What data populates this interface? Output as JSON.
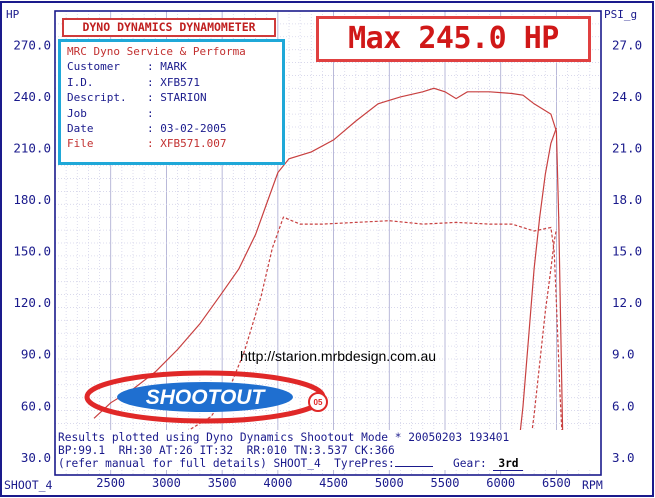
{
  "header": {
    "brand": "DYNO DYNAMICS DYNAMOMETER",
    "max_text": "Max 245.0 HP"
  },
  "info": {
    "shop": "MRC Dyno Service & Performa",
    "rows": [
      {
        "label": "Customer",
        "value": ": MARK"
      },
      {
        "label": "I.D.",
        "value": ": XFB571"
      },
      {
        "label": "Descript.",
        "value": ": STARION"
      },
      {
        "label": "Job",
        "value": ":"
      },
      {
        "label": "Date",
        "value": ": 03-02-2005"
      }
    ],
    "file_label": "File",
    "file_value": ": XFB571.007"
  },
  "url": "http://starion.mrbdesign.com.au",
  "logo": {
    "text": "SHOOTOUT",
    "sub": "05"
  },
  "bottom": {
    "line1": "Results plotted using Dyno Dynamics Shootout Mode * 20050203 193401",
    "line2": "BP:99.1  RH:30 AT:26 IT:32  RR:010 TN:3.537 CK:366",
    "line3_a": "(refer manual for full details) SHOOT_4  TyrePres:",
    "line3_b": "Gear:",
    "gear": "3rd"
  },
  "footer": {
    "mode": "SHOOT_4",
    "x_unit": "RPM"
  },
  "chart_data": {
    "type": "line",
    "ylabel_left": "HP",
    "ylabel_right": "PSI_g",
    "xlabel": "RPM",
    "xlim": [
      2000,
      6900
    ],
    "ylim_left": [
      20,
      290
    ],
    "ylim_right": [
      2.0,
      29.0
    ],
    "x_ticks": [
      2500,
      3000,
      3500,
      4000,
      4500,
      5000,
      5500,
      6000,
      6500
    ],
    "y_ticks_left": [
      "30.0",
      "60.0",
      "90.0",
      "120.0",
      "150.0",
      "180.0",
      "210.0",
      "240.0",
      "270.0"
    ],
    "y_ticks_right": [
      "3.0",
      "6.0",
      "9.0",
      "12.0",
      "15.0",
      "18.0",
      "21.0",
      "24.0",
      "27.0"
    ],
    "grid": true,
    "series": [
      {
        "axis": "left",
        "style": "solid",
        "color": "#c84040",
        "points": [
          [
            2350,
            53
          ],
          [
            2500,
            62
          ],
          [
            2700,
            70
          ],
          [
            2900,
            80
          ],
          [
            3100,
            93
          ],
          [
            3300,
            108
          ],
          [
            3500,
            126
          ],
          [
            3650,
            140
          ],
          [
            3800,
            160
          ],
          [
            3900,
            178
          ],
          [
            4000,
            196
          ],
          [
            4100,
            204
          ],
          [
            4300,
            208
          ],
          [
            4500,
            215
          ],
          [
            4700,
            226
          ],
          [
            4900,
            236
          ],
          [
            5100,
            240
          ],
          [
            5300,
            243
          ],
          [
            5400,
            245
          ],
          [
            5500,
            243
          ],
          [
            5600,
            239
          ],
          [
            5700,
            243
          ],
          [
            5900,
            243
          ],
          [
            6100,
            242
          ],
          [
            6200,
            241
          ],
          [
            6300,
            236
          ],
          [
            6450,
            230
          ],
          [
            6500,
            220
          ],
          [
            6520,
            170
          ],
          [
            6540,
            100
          ],
          [
            6560,
            30
          ]
        ]
      },
      {
        "axis": "right",
        "style": "dashed",
        "color": "#c84040",
        "points": [
          [
            2350,
            3.4
          ],
          [
            2600,
            3.5
          ],
          [
            2800,
            3.8
          ],
          [
            3000,
            4.1
          ],
          [
            3200,
            4.6
          ],
          [
            3400,
            5.4
          ],
          [
            3550,
            6.8
          ],
          [
            3700,
            9.2
          ],
          [
            3850,
            12.4
          ],
          [
            3950,
            15.2
          ],
          [
            4050,
            17.0
          ],
          [
            4200,
            16.6
          ],
          [
            4400,
            16.6
          ],
          [
            4700,
            16.7
          ],
          [
            5000,
            16.8
          ],
          [
            5300,
            16.6
          ],
          [
            5600,
            16.7
          ],
          [
            5900,
            16.6
          ],
          [
            6100,
            16.6
          ],
          [
            6300,
            16.2
          ],
          [
            6450,
            16.4
          ],
          [
            6480,
            15.0
          ],
          [
            6500,
            12.0
          ],
          [
            6530,
            7.0
          ],
          [
            6560,
            3.0
          ]
        ]
      },
      {
        "axis": "left",
        "style": "solid",
        "color": "#c84040",
        "points": [
          [
            6150,
            30
          ],
          [
            6200,
            60
          ],
          [
            6250,
            100
          ],
          [
            6300,
            140
          ],
          [
            6350,
            170
          ],
          [
            6400,
            195
          ],
          [
            6450,
            213
          ],
          [
            6500,
            222
          ]
        ]
      },
      {
        "axis": "right",
        "style": "dashed",
        "color": "#c84040",
        "points": [
          [
            6250,
            3.0
          ],
          [
            6300,
            5.5
          ],
          [
            6350,
            8.5
          ],
          [
            6400,
            11.5
          ],
          [
            6450,
            14.0
          ],
          [
            6480,
            15.6
          ],
          [
            6500,
            16.3
          ]
        ]
      }
    ]
  }
}
